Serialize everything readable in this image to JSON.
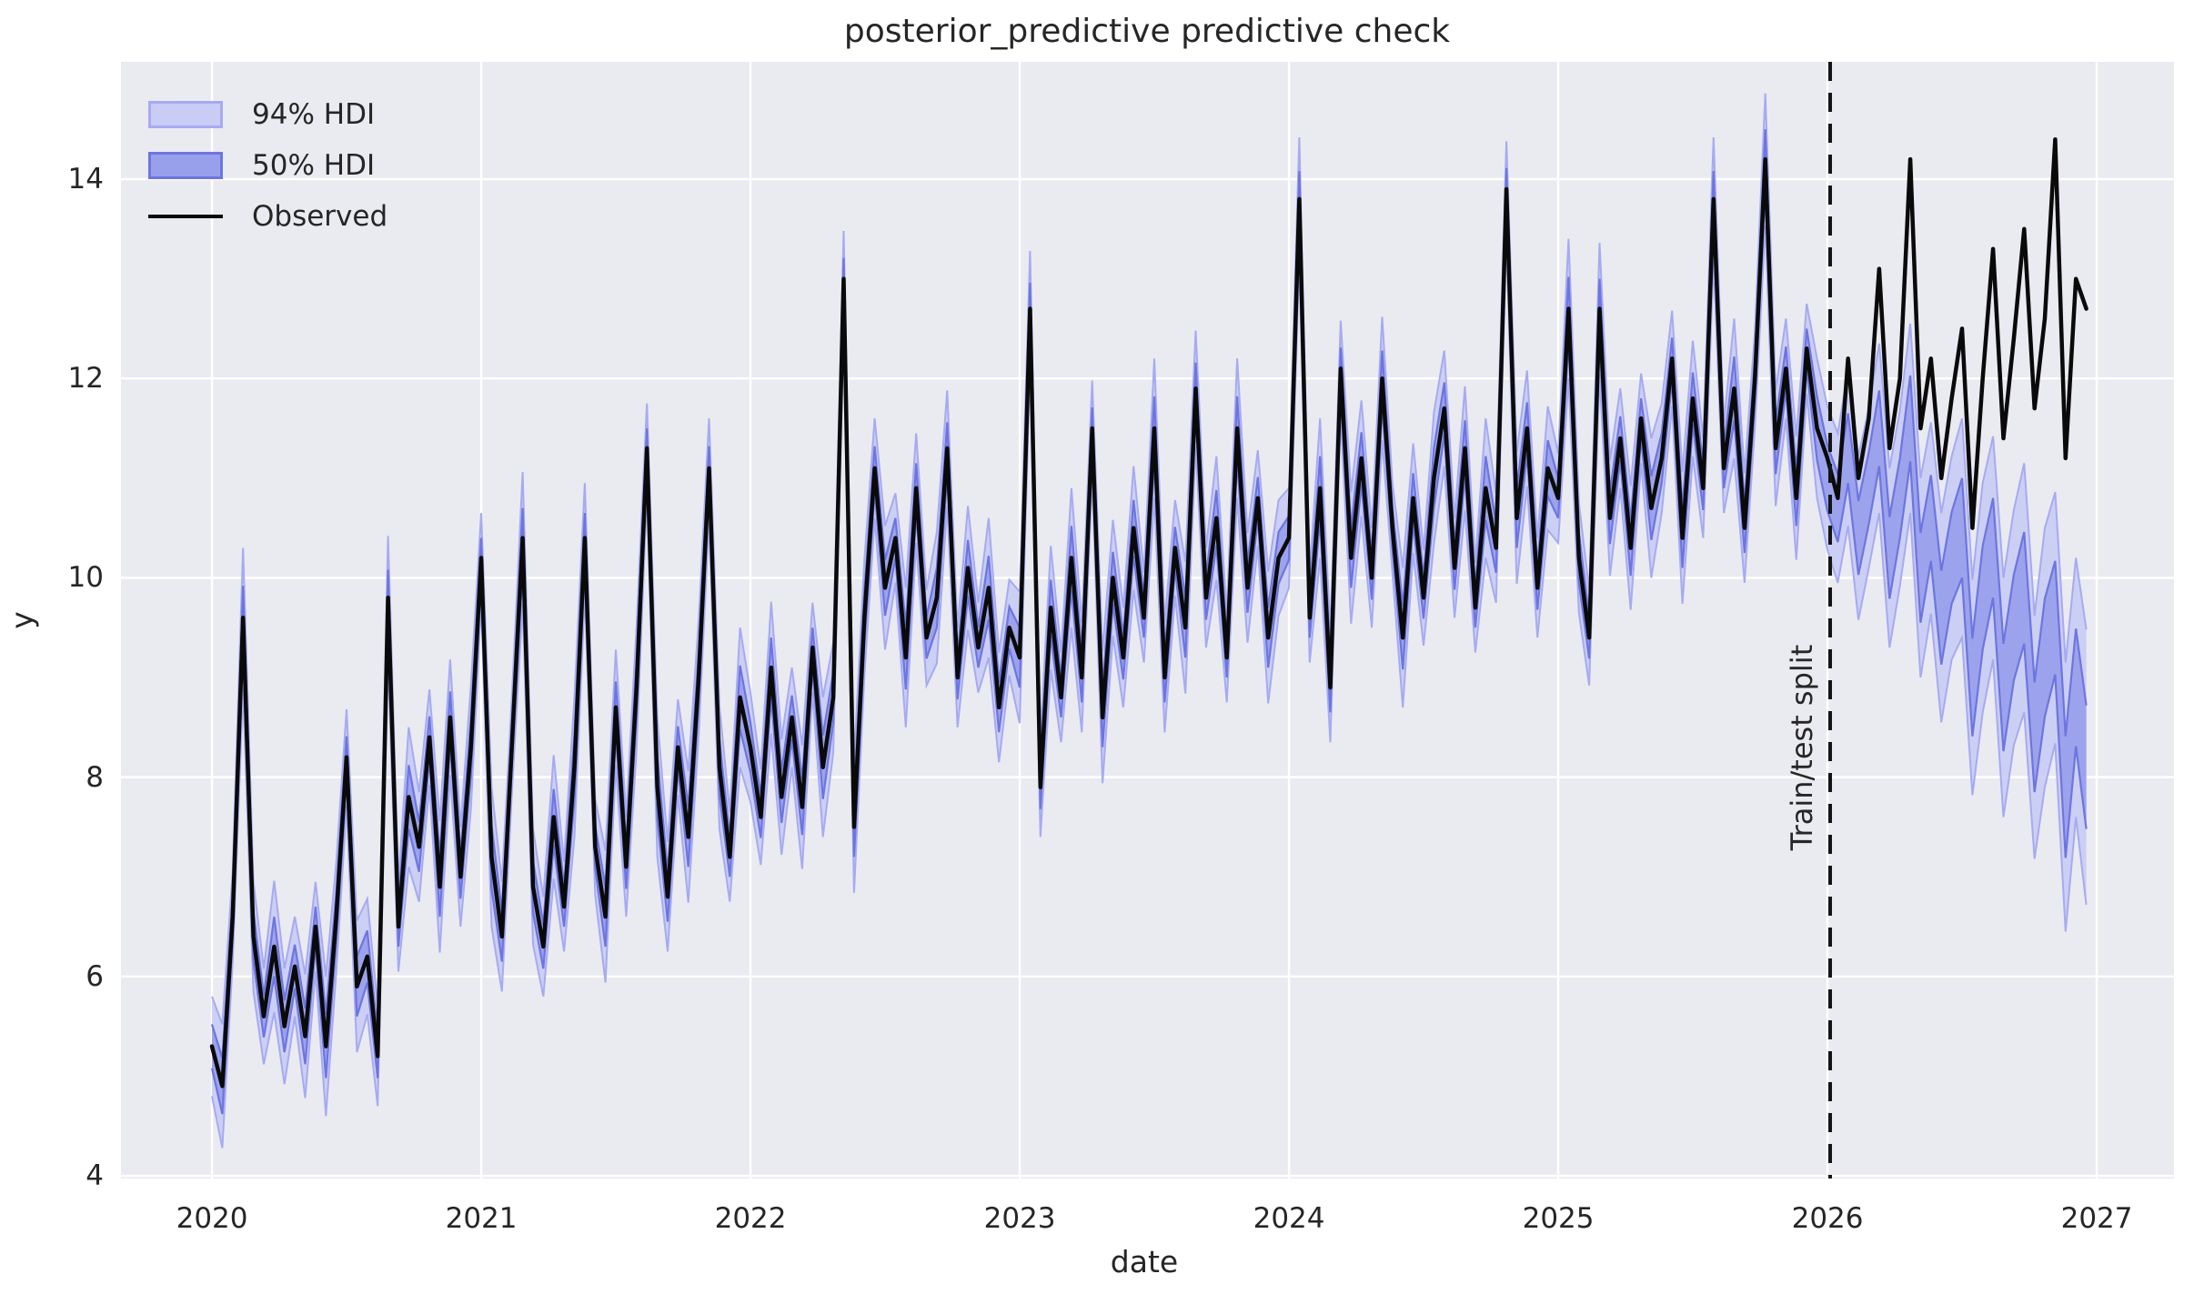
{
  "title": "posterior_predictive predictive check",
  "xlabel": "date",
  "ylabel": "y",
  "annotation": {
    "label": "Train/test split",
    "split_x": 2026.01
  },
  "legend": {
    "items": [
      {
        "label": "94% HDI",
        "type": "band",
        "fill": "#c9ccf4",
        "edge": "#a6abf0"
      },
      {
        "label": "50% HDI",
        "type": "band",
        "fill": "#99a0eb",
        "edge": "#6d75e0"
      },
      {
        "label": "Observed",
        "type": "line",
        "color": "#0a0a0a"
      }
    ]
  },
  "axes": {
    "xlim": [
      2019.662,
      2027.287
    ],
    "ylim": [
      3.973,
      15.177
    ],
    "xticks": {
      "values": [
        2020,
        2021,
        2022,
        2023,
        2024,
        2025,
        2026,
        2027
      ],
      "labels": [
        "2020",
        "2021",
        "2022",
        "2023",
        "2024",
        "2025",
        "2026",
        "2027"
      ]
    },
    "yticks": {
      "values": [
        4,
        6,
        8,
        10,
        12,
        14
      ],
      "labels": [
        "4",
        "6",
        "8",
        "10",
        "12",
        "14"
      ]
    },
    "grid": true,
    "legend_position": "upper-left"
  },
  "colors": {
    "figure_bg": "#ffffff",
    "axes_bg": "#eaeaf1",
    "grid": "#ffffff",
    "observed": "#0a0a0a",
    "band94_fill": "#c9ccf4",
    "band94_edge": "#a6abf0",
    "band50_fill": "#99a0eb",
    "band50_edge": "#6d75e0",
    "split_line": "#141414",
    "text": "#262626"
  },
  "chart_data": {
    "type": "line",
    "title": "posterior_predictive predictive check",
    "xlabel": "date",
    "ylabel": "y",
    "x_start_year": 2020.0,
    "x_step_years": 0.03846,
    "n_points": 182,
    "train_test_split_year": 2026.0,
    "series": [
      {
        "name": "Observed",
        "values": [
          5.3,
          4.9,
          6.6,
          9.6,
          6.4,
          5.6,
          6.3,
          5.5,
          6.1,
          5.4,
          6.5,
          5.3,
          6.6,
          8.2,
          5.9,
          6.2,
          5.2,
          9.8,
          6.5,
          7.8,
          7.3,
          8.4,
          6.9,
          8.6,
          7.0,
          8.3,
          10.2,
          7.2,
          6.4,
          8.4,
          10.4,
          6.9,
          6.3,
          7.6,
          6.7,
          8.1,
          10.4,
          7.3,
          6.6,
          8.7,
          7.1,
          8.9,
          11.3,
          7.9,
          6.8,
          8.3,
          7.4,
          9.0,
          11.1,
          8.1,
          7.2,
          8.8,
          8.3,
          7.6,
          9.1,
          7.8,
          8.6,
          7.7,
          9.3,
          8.1,
          8.8,
          13.0,
          7.5,
          9.6,
          11.1,
          9.9,
          10.4,
          9.2,
          10.9,
          9.4,
          9.8,
          11.3,
          9.0,
          10.1,
          9.3,
          9.9,
          8.7,
          9.5,
          9.2,
          12.7,
          7.9,
          9.7,
          8.8,
          10.2,
          9.0,
          11.5,
          8.6,
          10.0,
          9.2,
          10.5,
          9.6,
          11.5,
          9.0,
          10.3,
          9.5,
          11.9,
          9.8,
          10.6,
          9.2,
          11.5,
          9.9,
          10.8,
          9.4,
          10.2,
          10.4,
          13.8,
          9.6,
          10.9,
          8.9,
          12.1,
          10.2,
          11.2,
          10.0,
          12.0,
          10.5,
          9.4,
          10.8,
          9.8,
          11.0,
          11.7,
          10.1,
          11.3,
          9.7,
          10.9,
          10.3,
          13.9,
          10.6,
          11.5,
          9.9,
          11.1,
          10.8,
          12.7,
          10.2,
          9.4,
          12.7,
          10.6,
          11.4,
          10.3,
          11.6,
          10.7,
          11.2,
          12.2,
          10.4,
          11.8,
          10.9,
          13.8,
          11.1,
          11.9,
          10.5,
          12.0,
          14.2,
          11.3,
          12.1,
          10.8,
          12.3,
          11.5,
          11.2,
          10.8,
          12.2,
          11.0,
          11.6,
          13.1,
          11.3,
          12.0,
          14.2,
          11.5,
          12.2,
          11.0,
          11.8,
          12.5,
          10.5,
          12.0,
          13.3,
          11.4,
          12.4,
          13.5,
          11.7,
          12.6,
          14.4,
          11.2,
          13.0,
          12.7
        ]
      },
      {
        "name": "posterior_predictive_mean",
        "values": [
          5.3,
          4.9,
          6.6,
          9.6,
          6.4,
          5.6,
          6.3,
          5.5,
          6.1,
          5.4,
          6.5,
          5.3,
          6.6,
          8.2,
          5.9,
          6.2,
          5.2,
          9.8,
          6.5,
          7.8,
          7.3,
          8.4,
          6.9,
          8.6,
          7.0,
          8.3,
          10.2,
          7.2,
          6.4,
          8.4,
          10.4,
          6.9,
          6.3,
          7.6,
          6.7,
          8.1,
          10.4,
          7.3,
          6.6,
          8.7,
          7.1,
          8.9,
          11.3,
          7.9,
          6.8,
          8.3,
          7.4,
          9.0,
          11.1,
          8.1,
          7.2,
          8.8,
          8.3,
          7.6,
          9.1,
          7.8,
          8.6,
          7.7,
          9.3,
          8.1,
          8.8,
          13.0,
          7.5,
          9.6,
          11.1,
          9.9,
          10.4,
          9.2,
          10.9,
          9.4,
          9.8,
          11.3,
          9.0,
          10.1,
          9.3,
          9.9,
          8.7,
          9.5,
          9.2,
          12.7,
          7.9,
          9.7,
          8.8,
          10.2,
          9.0,
          11.5,
          8.6,
          10.0,
          9.2,
          10.5,
          9.6,
          11.5,
          9.0,
          10.3,
          9.5,
          11.9,
          9.8,
          10.6,
          9.2,
          11.5,
          9.9,
          10.8,
          9.4,
          10.2,
          10.4,
          13.8,
          9.6,
          10.9,
          8.9,
          12.1,
          10.2,
          11.2,
          10.0,
          12.0,
          10.5,
          9.4,
          10.8,
          9.8,
          11.0,
          11.7,
          10.1,
          11.3,
          9.7,
          10.9,
          10.3,
          13.9,
          10.6,
          11.5,
          9.9,
          11.1,
          10.8,
          12.7,
          10.2,
          9.4,
          12.7,
          10.6,
          11.4,
          10.3,
          11.6,
          10.7,
          11.2,
          12.2,
          10.4,
          11.8,
          10.9,
          13.8,
          11.1,
          11.9,
          10.5,
          12.0,
          14.2,
          11.3,
          12.1,
          10.8,
          12.3,
          11.5,
          11.0,
          10.7,
          11.3,
          10.4,
          10.9,
          11.5,
          10.2,
          10.8,
          11.6,
          10.0,
          10.6,
          9.6,
          10.2,
          10.5,
          8.9,
          9.8,
          10.3,
          8.8,
          9.5,
          9.9,
          8.4,
          9.2,
          9.6,
          7.8,
          8.9,
          8.1
        ]
      },
      {
        "name": "hdi94_half_width",
        "values": [
          0.5,
          0.62,
          0.45,
          0.7,
          0.55,
          0.48,
          0.66,
          0.58,
          0.5,
          0.62,
          0.45,
          0.7,
          0.55,
          0.48,
          0.66,
          0.58,
          0.5,
          0.62,
          0.45,
          0.7,
          0.55,
          0.48,
          0.66,
          0.58,
          0.5,
          0.62,
          0.45,
          0.7,
          0.55,
          0.48,
          0.66,
          0.58,
          0.5,
          0.62,
          0.45,
          0.7,
          0.55,
          0.48,
          0.66,
          0.58,
          0.5,
          0.62,
          0.45,
          0.7,
          0.55,
          0.48,
          0.66,
          0.58,
          0.5,
          0.62,
          0.45,
          0.7,
          0.55,
          0.48,
          0.66,
          0.58,
          0.5,
          0.62,
          0.45,
          0.7,
          0.55,
          0.48,
          0.66,
          0.58,
          0.5,
          0.62,
          0.45,
          0.7,
          0.55,
          0.48,
          0.66,
          0.58,
          0.5,
          0.62,
          0.45,
          0.7,
          0.55,
          0.48,
          0.66,
          0.58,
          0.5,
          0.62,
          0.45,
          0.7,
          0.55,
          0.48,
          0.66,
          0.58,
          0.5,
          0.62,
          0.45,
          0.7,
          0.55,
          0.48,
          0.66,
          0.58,
          0.5,
          0.62,
          0.45,
          0.7,
          0.55,
          0.48,
          0.66,
          0.58,
          0.5,
          0.62,
          0.45,
          0.7,
          0.55,
          0.48,
          0.66,
          0.58,
          0.5,
          0.62,
          0.45,
          0.7,
          0.55,
          0.48,
          0.66,
          0.58,
          0.5,
          0.62,
          0.45,
          0.7,
          0.55,
          0.48,
          0.66,
          0.58,
          0.5,
          0.62,
          0.45,
          0.7,
          0.55,
          0.48,
          0.66,
          0.58,
          0.5,
          0.62,
          0.45,
          0.7,
          0.55,
          0.48,
          0.66,
          0.58,
          0.5,
          0.62,
          0.45,
          0.7,
          0.55,
          0.48,
          0.66,
          0.58,
          0.5,
          0.62,
          0.45,
          0.7,
          0.72,
          0.75,
          0.78,
          0.82,
          0.8,
          0.85,
          0.9,
          0.88,
          0.95,
          1.0,
          0.96,
          1.05,
          1.02,
          1.1,
          1.08,
          1.15,
          1.12,
          1.2,
          1.18,
          1.25,
          1.22,
          1.3,
          1.26,
          1.35,
          1.3,
          1.38
        ]
      },
      {
        "name": "hdi50_half_width",
        "values": [
          0.22,
          0.28,
          0.2,
          0.32,
          0.25,
          0.21,
          0.3,
          0.26,
          0.22,
          0.28,
          0.2,
          0.32,
          0.25,
          0.21,
          0.3,
          0.26,
          0.22,
          0.28,
          0.2,
          0.32,
          0.25,
          0.21,
          0.3,
          0.26,
          0.22,
          0.28,
          0.2,
          0.32,
          0.25,
          0.21,
          0.3,
          0.26,
          0.22,
          0.28,
          0.2,
          0.32,
          0.25,
          0.21,
          0.3,
          0.26,
          0.22,
          0.28,
          0.2,
          0.32,
          0.25,
          0.21,
          0.3,
          0.26,
          0.22,
          0.28,
          0.2,
          0.32,
          0.25,
          0.21,
          0.3,
          0.26,
          0.22,
          0.28,
          0.2,
          0.32,
          0.25,
          0.21,
          0.3,
          0.26,
          0.22,
          0.28,
          0.2,
          0.32,
          0.25,
          0.21,
          0.3,
          0.26,
          0.22,
          0.28,
          0.2,
          0.32,
          0.25,
          0.21,
          0.3,
          0.26,
          0.22,
          0.28,
          0.2,
          0.32,
          0.25,
          0.21,
          0.3,
          0.26,
          0.22,
          0.28,
          0.2,
          0.32,
          0.25,
          0.21,
          0.3,
          0.26,
          0.22,
          0.28,
          0.2,
          0.32,
          0.25,
          0.21,
          0.3,
          0.26,
          0.22,
          0.28,
          0.2,
          0.32,
          0.25,
          0.21,
          0.3,
          0.26,
          0.22,
          0.28,
          0.2,
          0.32,
          0.25,
          0.21,
          0.3,
          0.26,
          0.22,
          0.28,
          0.2,
          0.32,
          0.25,
          0.21,
          0.3,
          0.26,
          0.22,
          0.28,
          0.2,
          0.32,
          0.25,
          0.21,
          0.3,
          0.26,
          0.22,
          0.28,
          0.2,
          0.32,
          0.25,
          0.21,
          0.3,
          0.26,
          0.22,
          0.28,
          0.2,
          0.32,
          0.25,
          0.21,
          0.3,
          0.26,
          0.22,
          0.28,
          0.2,
          0.32,
          0.33,
          0.34,
          0.35,
          0.37,
          0.36,
          0.38,
          0.41,
          0.4,
          0.43,
          0.45,
          0.43,
          0.47,
          0.46,
          0.5,
          0.49,
          0.52,
          0.5,
          0.54,
          0.53,
          0.56,
          0.55,
          0.59,
          0.57,
          0.61,
          0.59,
          0.62
        ]
      }
    ]
  }
}
